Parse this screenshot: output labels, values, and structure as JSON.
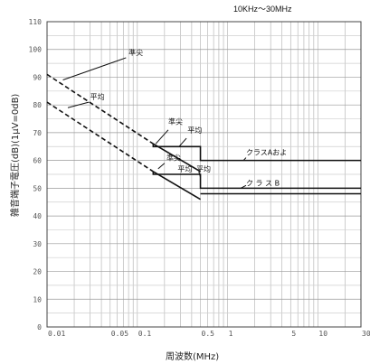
{
  "chart_data": {
    "type": "line",
    "title": "10KHz〜30MHz",
    "xlabel": "周波数(MHz)",
    "ylabel": "雑音端子電圧(dB)(1μV=0dB)",
    "xscale": "log",
    "xlim": [
      0.01,
      30
    ],
    "ylim": [
      0,
      110
    ],
    "x_ticks": [
      "0.01",
      "0.05",
      "0.1",
      "0.5",
      "1",
      "5",
      "10",
      "30"
    ],
    "y_ticks": [
      "0",
      "10",
      "20",
      "30",
      "40",
      "50",
      "60",
      "70",
      "80",
      "90",
      "100",
      "110"
    ],
    "grid": true,
    "series": [
      {
        "label": "準尖",
        "style": "dashed",
        "x": [
          0.01,
          0.15
        ],
        "y": [
          91,
          66
        ]
      },
      {
        "label": "平均",
        "style": "dashed",
        "x": [
          0.01,
          0.15
        ],
        "y": [
          81,
          56
        ]
      },
      {
        "label": "準尖",
        "style": "solid",
        "x": [
          0.15,
          0.15,
          0.5,
          0.5,
          30
        ],
        "y": [
          66,
          65,
          65,
          60,
          60
        ]
      },
      {
        "label": "平均",
        "style": "solid",
        "x": [
          0.15,
          0.15,
          0.5,
          0.5,
          30
        ],
        "y": [
          56,
          55,
          55,
          50,
          50
        ]
      },
      {
        "label": "準尖",
        "style": "solid",
        "x": [
          0.15,
          0.5
        ],
        "y": [
          66,
          56
        ]
      },
      {
        "label": "平均",
        "style": "solid",
        "x": [
          0.15,
          0.5
        ],
        "y": [
          56,
          46
        ]
      },
      {
        "label": "",
        "style": "solid",
        "x": [
          0.5,
          30
        ],
        "y": [
          48,
          48
        ]
      }
    ],
    "annotations": [
      "準尖",
      "準尖",
      "準尖",
      "平均",
      "平均",
      "平均",
      "平均",
      "クラスAおよ",
      "ク ラ ス B"
    ]
  }
}
